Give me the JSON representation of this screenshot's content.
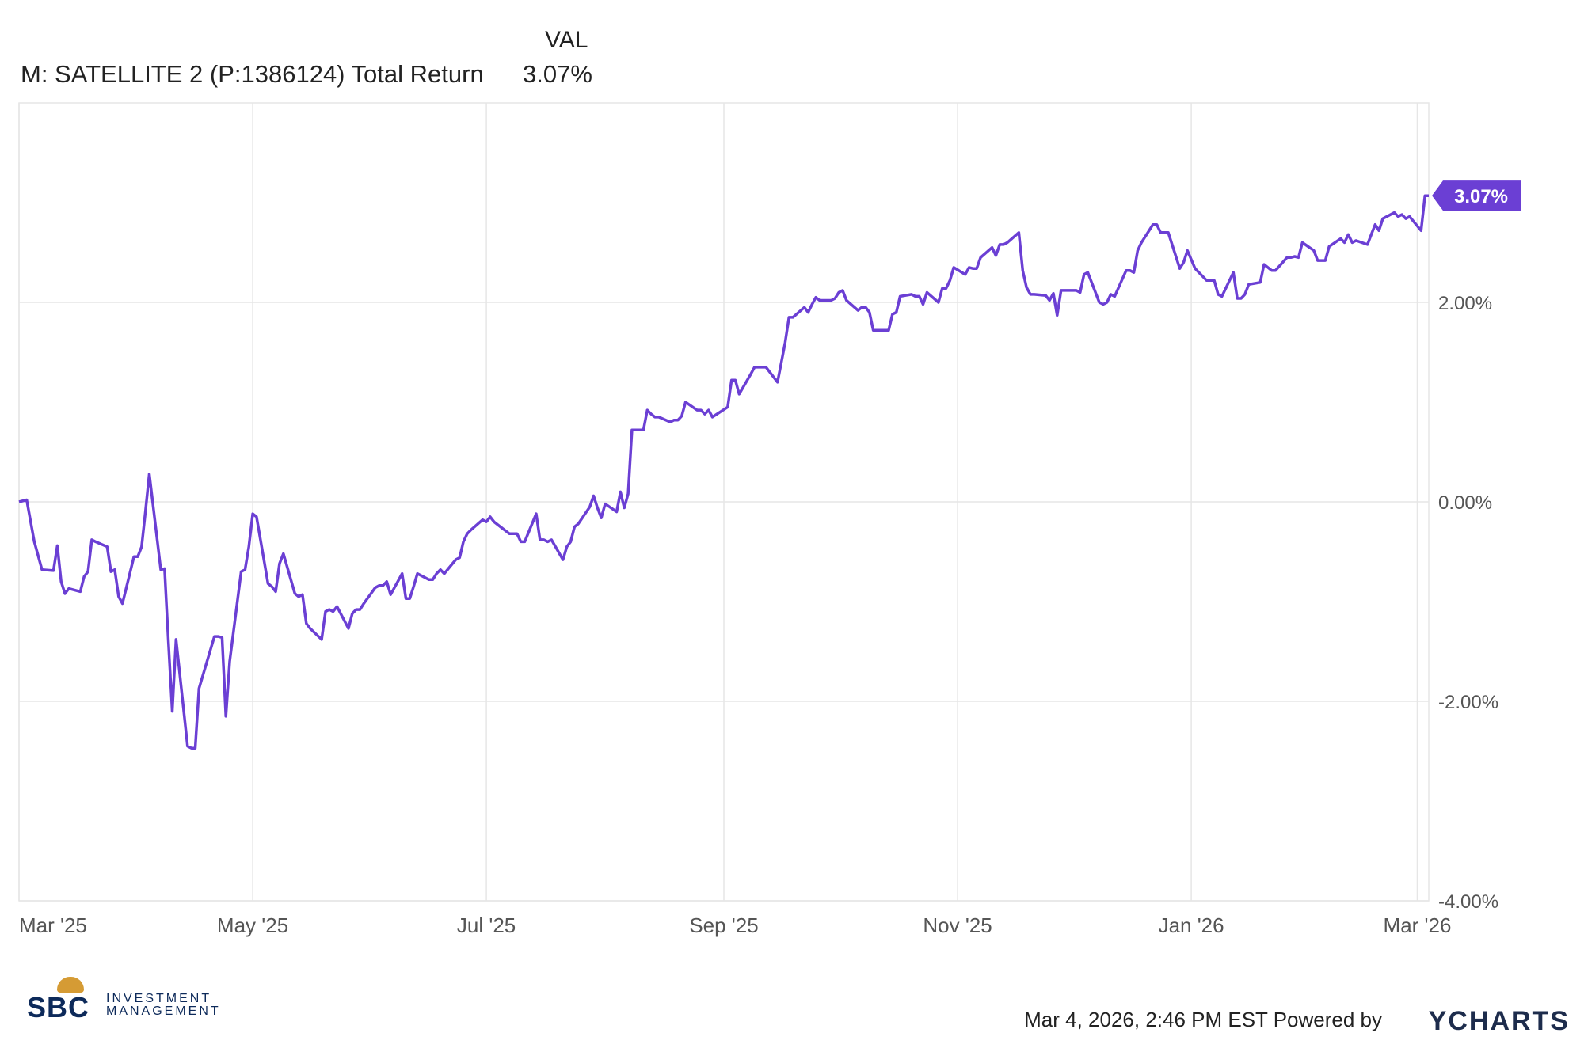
{
  "legend": {
    "column_header": "VAL",
    "series_name": "M: SATELLITE 2 (P:1386124) Total Return",
    "series_value": "3.07%"
  },
  "footer": {
    "timestamp": "Mar 4, 2026, 2:46 PM EST Powered by",
    "brand": "YCHARTS",
    "logo_text_1": "SBC",
    "logo_text_2": "INVESTMENT",
    "logo_text_3": "MANAGEMENT"
  },
  "colors": {
    "series": "#6b3fd4",
    "grid": "#e6e6e6",
    "axis_text": "#555555"
  },
  "chart_data": {
    "type": "line",
    "title": "",
    "xlabel": "",
    "ylabel": "",
    "ylim": [
      -4.0,
      4.0
    ],
    "grid": true,
    "y_ticks": [
      {
        "value": 2.0,
        "label": "2.00%"
      },
      {
        "value": 0.0,
        "label": "0.00%"
      },
      {
        "value": -2.0,
        "label": "-2.00%"
      },
      {
        "value": -4.0,
        "label": "-4.00%"
      }
    ],
    "x_ticks": [
      {
        "date": "2025-03-01",
        "label": "Mar '25"
      },
      {
        "date": "2025-05-01",
        "label": "May '25"
      },
      {
        "date": "2025-07-01",
        "label": "Jul '25"
      },
      {
        "date": "2025-09-01",
        "label": "Sep '25"
      },
      {
        "date": "2025-11-01",
        "label": "Nov '25"
      },
      {
        "date": "2026-01-01",
        "label": "Jan '26"
      },
      {
        "date": "2026-03-01",
        "label": "Mar '26"
      }
    ],
    "x_range": [
      "2025-03-01",
      "2026-03-04"
    ],
    "end_label": "3.07%",
    "series": [
      {
        "values": [
          [
            "2025-03-01",
            0.0
          ],
          [
            "2025-03-03",
            0.02
          ],
          [
            "2025-03-05",
            -0.4
          ],
          [
            "2025-03-07",
            -0.68
          ],
          [
            "2025-03-10",
            -0.69
          ],
          [
            "2025-03-11",
            -0.44
          ],
          [
            "2025-03-12",
            -0.8
          ],
          [
            "2025-03-13",
            -0.92
          ],
          [
            "2025-03-14",
            -0.87
          ],
          [
            "2025-03-17",
            -0.9
          ],
          [
            "2025-03-18",
            -0.75
          ],
          [
            "2025-03-19",
            -0.7
          ],
          [
            "2025-03-20",
            -0.38
          ],
          [
            "2025-03-21",
            -0.4
          ],
          [
            "2025-03-24",
            -0.45
          ],
          [
            "2025-03-25",
            -0.7
          ],
          [
            "2025-03-26",
            -0.68
          ],
          [
            "2025-03-27",
            -0.95
          ],
          [
            "2025-03-28",
            -1.02
          ],
          [
            "2025-03-31",
            -0.55
          ],
          [
            "2025-04-01",
            -0.55
          ],
          [
            "2025-04-02",
            -0.45
          ],
          [
            "2025-04-03",
            -0.1
          ],
          [
            "2025-04-04",
            0.28
          ],
          [
            "2025-04-07",
            -0.68
          ],
          [
            "2025-04-08",
            -0.67
          ],
          [
            "2025-04-09",
            -1.4
          ],
          [
            "2025-04-10",
            -2.1
          ],
          [
            "2025-04-11",
            -1.38
          ],
          [
            "2025-04-14",
            -2.45
          ],
          [
            "2025-04-15",
            -2.47
          ],
          [
            "2025-04-16",
            -2.47
          ],
          [
            "2025-04-17",
            -1.87
          ],
          [
            "2025-04-21",
            -1.35
          ],
          [
            "2025-04-22",
            -1.35
          ],
          [
            "2025-04-23",
            -1.36
          ],
          [
            "2025-04-24",
            -2.15
          ],
          [
            "2025-04-25",
            -1.6
          ],
          [
            "2025-04-28",
            -0.7
          ],
          [
            "2025-04-29",
            -0.68
          ],
          [
            "2025-04-30",
            -0.45
          ],
          [
            "2025-05-01",
            -0.12
          ],
          [
            "2025-05-02",
            -0.15
          ],
          [
            "2025-05-05",
            -0.82
          ],
          [
            "2025-05-06",
            -0.85
          ],
          [
            "2025-05-07",
            -0.9
          ],
          [
            "2025-05-08",
            -0.62
          ],
          [
            "2025-05-09",
            -0.52
          ],
          [
            "2025-05-12",
            -0.92
          ],
          [
            "2025-05-13",
            -0.95
          ],
          [
            "2025-05-14",
            -0.93
          ],
          [
            "2025-05-15",
            -1.22
          ],
          [
            "2025-05-16",
            -1.27
          ],
          [
            "2025-05-19",
            -1.38
          ],
          [
            "2025-05-20",
            -1.1
          ],
          [
            "2025-05-21",
            -1.08
          ],
          [
            "2025-05-22",
            -1.1
          ],
          [
            "2025-05-23",
            -1.05
          ],
          [
            "2025-05-26",
            -1.27
          ],
          [
            "2025-05-27",
            -1.12
          ],
          [
            "2025-05-28",
            -1.08
          ],
          [
            "2025-05-29",
            -1.08
          ],
          [
            "2025-05-30",
            -1.02
          ],
          [
            "2025-06-02",
            -0.86
          ],
          [
            "2025-06-03",
            -0.84
          ],
          [
            "2025-06-04",
            -0.84
          ],
          [
            "2025-06-05",
            -0.8
          ],
          [
            "2025-06-06",
            -0.93
          ],
          [
            "2025-06-09",
            -0.72
          ],
          [
            "2025-06-10",
            -0.97
          ],
          [
            "2025-06-11",
            -0.97
          ],
          [
            "2025-06-12",
            -0.85
          ],
          [
            "2025-06-13",
            -0.72
          ],
          [
            "2025-06-16",
            -0.78
          ],
          [
            "2025-06-17",
            -0.78
          ],
          [
            "2025-06-18",
            -0.72
          ],
          [
            "2025-06-19",
            -0.68
          ],
          [
            "2025-06-20",
            -0.72
          ],
          [
            "2025-06-23",
            -0.58
          ],
          [
            "2025-06-24",
            -0.56
          ],
          [
            "2025-06-25",
            -0.4
          ],
          [
            "2025-06-26",
            -0.32
          ],
          [
            "2025-06-27",
            -0.28
          ],
          [
            "2025-06-30",
            -0.18
          ],
          [
            "2025-07-01",
            -0.2
          ],
          [
            "2025-07-02",
            -0.15
          ],
          [
            "2025-07-03",
            -0.2
          ],
          [
            "2025-07-07",
            -0.32
          ],
          [
            "2025-07-08",
            -0.32
          ],
          [
            "2025-07-09",
            -0.32
          ],
          [
            "2025-07-10",
            -0.4
          ],
          [
            "2025-07-11",
            -0.4
          ],
          [
            "2025-07-14",
            -0.12
          ],
          [
            "2025-07-15",
            -0.38
          ],
          [
            "2025-07-16",
            -0.38
          ],
          [
            "2025-07-17",
            -0.4
          ],
          [
            "2025-07-18",
            -0.38
          ],
          [
            "2025-07-21",
            -0.58
          ],
          [
            "2025-07-22",
            -0.45
          ],
          [
            "2025-07-23",
            -0.4
          ],
          [
            "2025-07-24",
            -0.25
          ],
          [
            "2025-07-25",
            -0.22
          ],
          [
            "2025-07-28",
            -0.05
          ],
          [
            "2025-07-29",
            0.06
          ],
          [
            "2025-07-30",
            -0.06
          ],
          [
            "2025-07-31",
            -0.16
          ],
          [
            "2025-08-01",
            -0.02
          ],
          [
            "2025-08-04",
            -0.1
          ],
          [
            "2025-08-05",
            0.1
          ],
          [
            "2025-08-06",
            -0.06
          ],
          [
            "2025-08-07",
            0.08
          ],
          [
            "2025-08-08",
            0.72
          ],
          [
            "2025-08-11",
            0.72
          ],
          [
            "2025-08-12",
            0.92
          ],
          [
            "2025-08-13",
            0.88
          ],
          [
            "2025-08-14",
            0.85
          ],
          [
            "2025-08-15",
            0.85
          ],
          [
            "2025-08-18",
            0.8
          ],
          [
            "2025-08-19",
            0.82
          ],
          [
            "2025-08-20",
            0.82
          ],
          [
            "2025-08-21",
            0.86
          ],
          [
            "2025-08-22",
            1.0
          ],
          [
            "2025-08-25",
            0.92
          ],
          [
            "2025-08-26",
            0.92
          ],
          [
            "2025-08-27",
            0.88
          ],
          [
            "2025-08-28",
            0.92
          ],
          [
            "2025-08-29",
            0.85
          ],
          [
            "2025-09-02",
            0.95
          ],
          [
            "2025-09-03",
            1.22
          ],
          [
            "2025-09-04",
            1.22
          ],
          [
            "2025-09-05",
            1.08
          ],
          [
            "2025-09-08",
            1.28
          ],
          [
            "2025-09-09",
            1.35
          ],
          [
            "2025-09-10",
            1.35
          ],
          [
            "2025-09-11",
            1.35
          ],
          [
            "2025-09-12",
            1.35
          ],
          [
            "2025-09-15",
            1.2
          ],
          [
            "2025-09-16",
            1.4
          ],
          [
            "2025-09-17",
            1.6
          ],
          [
            "2025-09-18",
            1.85
          ],
          [
            "2025-09-19",
            1.85
          ],
          [
            "2025-09-22",
            1.95
          ],
          [
            "2025-09-23",
            1.9
          ],
          [
            "2025-09-24",
            1.98
          ],
          [
            "2025-09-25",
            2.05
          ],
          [
            "2025-09-26",
            2.02
          ],
          [
            "2025-09-29",
            2.02
          ],
          [
            "2025-09-30",
            2.04
          ],
          [
            "2025-10-01",
            2.1
          ],
          [
            "2025-10-02",
            2.12
          ],
          [
            "2025-10-03",
            2.02
          ],
          [
            "2025-10-06",
            1.92
          ],
          [
            "2025-10-07",
            1.95
          ],
          [
            "2025-10-08",
            1.95
          ],
          [
            "2025-10-09",
            1.9
          ],
          [
            "2025-10-10",
            1.72
          ],
          [
            "2025-10-13",
            1.72
          ],
          [
            "2025-10-14",
            1.72
          ],
          [
            "2025-10-15",
            1.88
          ],
          [
            "2025-10-16",
            1.9
          ],
          [
            "2025-10-17",
            2.06
          ],
          [
            "2025-10-20",
            2.08
          ],
          [
            "2025-10-21",
            2.06
          ],
          [
            "2025-10-22",
            2.06
          ],
          [
            "2025-10-23",
            1.98
          ],
          [
            "2025-10-24",
            2.1
          ],
          [
            "2025-10-27",
            2.0
          ],
          [
            "2025-10-28",
            2.14
          ],
          [
            "2025-10-29",
            2.14
          ],
          [
            "2025-10-30",
            2.22
          ],
          [
            "2025-10-31",
            2.35
          ],
          [
            "2025-11-03",
            2.28
          ],
          [
            "2025-11-04",
            2.35
          ],
          [
            "2025-11-05",
            2.34
          ],
          [
            "2025-11-06",
            2.34
          ],
          [
            "2025-11-07",
            2.45
          ],
          [
            "2025-11-10",
            2.55
          ],
          [
            "2025-11-11",
            2.47
          ],
          [
            "2025-11-12",
            2.58
          ],
          [
            "2025-11-13",
            2.58
          ],
          [
            "2025-11-14",
            2.6
          ],
          [
            "2025-11-17",
            2.7
          ],
          [
            "2025-11-18",
            2.32
          ],
          [
            "2025-11-19",
            2.15
          ],
          [
            "2025-11-20",
            2.08
          ],
          [
            "2025-11-21",
            2.08
          ],
          [
            "2025-11-24",
            2.07
          ],
          [
            "2025-11-25",
            2.02
          ],
          [
            "2025-11-26",
            2.09
          ],
          [
            "2025-11-27",
            1.87
          ],
          [
            "2025-11-28",
            2.12
          ],
          [
            "2025-12-01",
            2.12
          ],
          [
            "2025-12-02",
            2.12
          ],
          [
            "2025-12-03",
            2.1
          ],
          [
            "2025-12-04",
            2.28
          ],
          [
            "2025-12-05",
            2.3
          ],
          [
            "2025-12-08",
            2.0
          ],
          [
            "2025-12-09",
            1.98
          ],
          [
            "2025-12-10",
            2.0
          ],
          [
            "2025-12-11",
            2.08
          ],
          [
            "2025-12-12",
            2.06
          ],
          [
            "2025-12-15",
            2.32
          ],
          [
            "2025-12-16",
            2.32
          ],
          [
            "2025-12-17",
            2.3
          ],
          [
            "2025-12-18",
            2.52
          ],
          [
            "2025-12-19",
            2.6
          ],
          [
            "2025-12-22",
            2.78
          ],
          [
            "2025-12-23",
            2.78
          ],
          [
            "2025-12-24",
            2.7
          ],
          [
            "2025-12-26",
            2.7
          ],
          [
            "2025-12-29",
            2.34
          ],
          [
            "2025-12-30",
            2.4
          ],
          [
            "2025-12-31",
            2.52
          ],
          [
            "2026-01-02",
            2.34
          ],
          [
            "2026-01-05",
            2.22
          ],
          [
            "2026-01-06",
            2.22
          ],
          [
            "2026-01-07",
            2.22
          ],
          [
            "2026-01-08",
            2.08
          ],
          [
            "2026-01-09",
            2.06
          ],
          [
            "2026-01-12",
            2.3
          ],
          [
            "2026-01-13",
            2.04
          ],
          [
            "2026-01-14",
            2.04
          ],
          [
            "2026-01-15",
            2.08
          ],
          [
            "2026-01-16",
            2.18
          ],
          [
            "2026-01-19",
            2.2
          ],
          [
            "2026-01-20",
            2.38
          ],
          [
            "2026-01-21",
            2.35
          ],
          [
            "2026-01-22",
            2.32
          ],
          [
            "2026-01-23",
            2.32
          ],
          [
            "2026-01-26",
            2.45
          ],
          [
            "2026-01-27",
            2.45
          ],
          [
            "2026-01-28",
            2.46
          ],
          [
            "2026-01-29",
            2.45
          ],
          [
            "2026-01-30",
            2.6
          ],
          [
            "2026-02-02",
            2.52
          ],
          [
            "2026-02-03",
            2.42
          ],
          [
            "2026-02-04",
            2.42
          ],
          [
            "2026-02-05",
            2.42
          ],
          [
            "2026-02-06",
            2.56
          ],
          [
            "2026-02-09",
            2.64
          ],
          [
            "2026-02-10",
            2.6
          ],
          [
            "2026-02-11",
            2.68
          ],
          [
            "2026-02-12",
            2.6
          ],
          [
            "2026-02-13",
            2.62
          ],
          [
            "2026-02-16",
            2.58
          ],
          [
            "2026-02-17",
            2.68
          ],
          [
            "2026-02-18",
            2.78
          ],
          [
            "2026-02-19",
            2.72
          ],
          [
            "2026-02-20",
            2.84
          ],
          [
            "2026-02-23",
            2.9
          ],
          [
            "2026-02-24",
            2.86
          ],
          [
            "2026-02-25",
            2.88
          ],
          [
            "2026-02-26",
            2.84
          ],
          [
            "2026-02-27",
            2.86
          ],
          [
            "2026-03-02",
            2.72
          ],
          [
            "2026-03-03",
            3.07
          ],
          [
            "2026-03-04",
            3.07
          ]
        ]
      }
    ]
  }
}
